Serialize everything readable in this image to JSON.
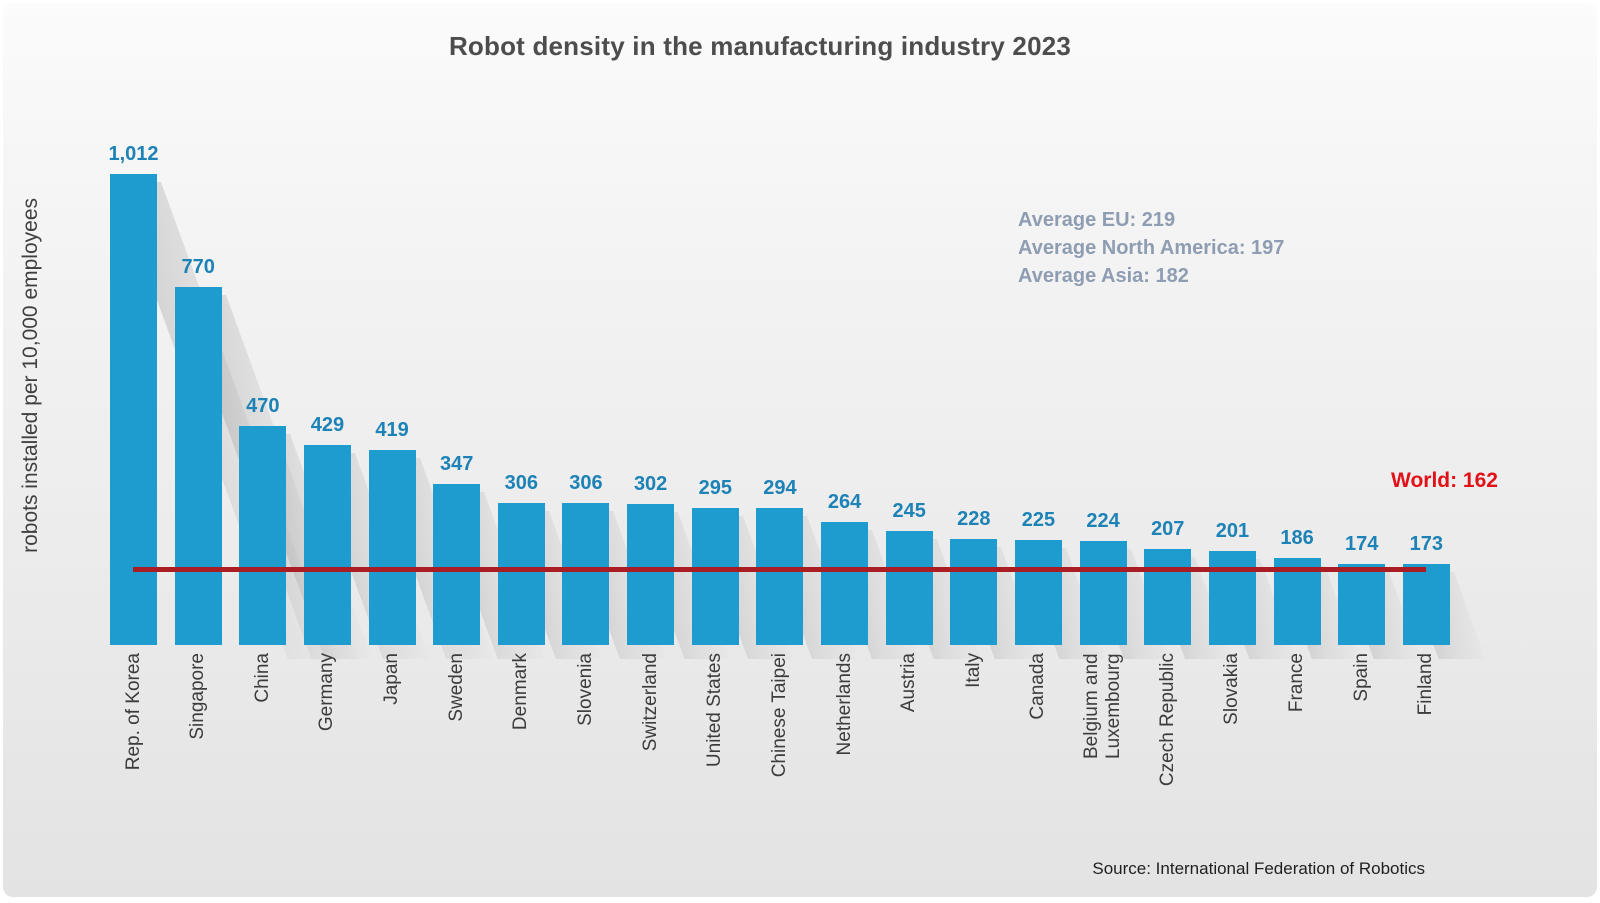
{
  "title": "Robot density in the manufacturing industry 2023",
  "y_axis_label": "robots installed per 10,000 employees",
  "source": "Source: International Federation of Robotics",
  "annotations": [
    "Average EU: 219",
    "Average North America: 197",
    "Average Asia: 182"
  ],
  "reference_line": {
    "label": "World: 162",
    "value": 162
  },
  "colors": {
    "bar": "#1e9ccf",
    "value_label": "#1d82b6",
    "reference_line": "#a91d23",
    "world_label": "#e21118",
    "annotation_text": "#8e9db2",
    "title_text": "#4d4d4d",
    "axis_text": "#3c3c3c"
  },
  "chart_data": {
    "type": "bar",
    "title": "Robot density in the manufacturing industry 2023",
    "xlabel": "",
    "ylabel": "robots installed per 10,000 employees",
    "ylim": [
      0,
      1080
    ],
    "grid": false,
    "legend": "none",
    "categories": [
      "Rep. of Korea",
      "Singapore",
      "China",
      "Germany",
      "Japan",
      "Sweden",
      "Denmark",
      "Slovenia",
      "Switzerland",
      "United States",
      "Chinese Taipei",
      "Netherlands",
      "Austria",
      "Italy",
      "Canada",
      "Belgium and Luxembourg",
      "Czech Republic",
      "Slovakia",
      "France",
      "Spain",
      "Finland"
    ],
    "values": [
      1012,
      770,
      470,
      429,
      419,
      347,
      306,
      306,
      302,
      295,
      294,
      264,
      245,
      228,
      225,
      224,
      207,
      201,
      186,
      174,
      173
    ],
    "value_labels": [
      "1,012",
      "770",
      "470",
      "429",
      "419",
      "347",
      "306",
      "306",
      "302",
      "295",
      "294",
      "264",
      "245",
      "228",
      "225",
      "224",
      "207",
      "201",
      "186",
      "174",
      "173"
    ],
    "reference_line": {
      "label": "World",
      "value": 162
    },
    "annotations": [
      "Average EU: 219",
      "Average North America: 197",
      "Average Asia: 182"
    ],
    "source": "Source: International Federation of Robotics"
  }
}
